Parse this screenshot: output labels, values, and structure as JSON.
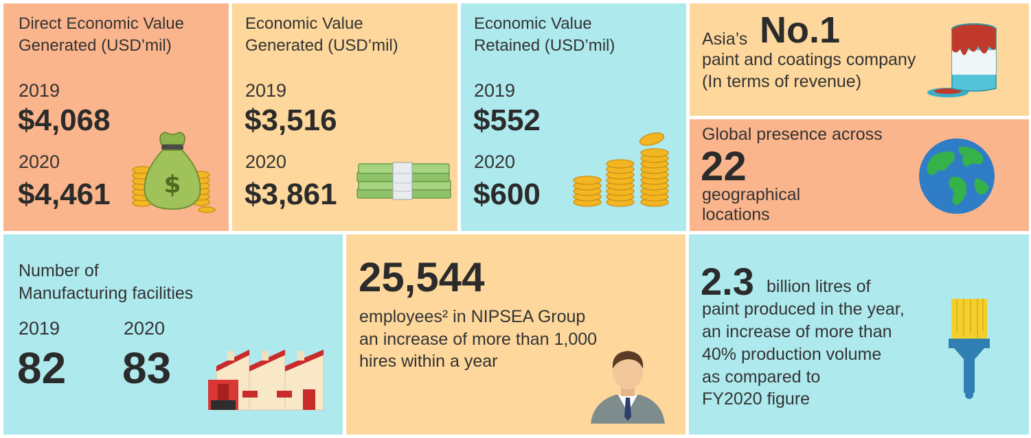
{
  "direct": {
    "title_line1": "Direct Economic Value",
    "title_line2": "Generated (USD’mil)",
    "year1": "2019",
    "value1": "$4,068",
    "year2": "2020",
    "value2": "$4,461"
  },
  "generated": {
    "title_line1": "Economic Value",
    "title_line2": "Generated (USD’mil)",
    "year1": "2019",
    "value1": "$3,516",
    "year2": "2020",
    "value2": "$3,861"
  },
  "retained": {
    "title_line1": "Economic Value",
    "title_line2": "Retained (USD’mil)",
    "year1": "2019",
    "value1": "$552",
    "year2": "2020",
    "value2": "$600"
  },
  "asia": {
    "prefix": "Asia’s",
    "rank": "No.1",
    "line1": "paint and coatings company",
    "line2": "(In terms of revenue)"
  },
  "global": {
    "heading": "Global presence across",
    "count": "22",
    "line1": "geographical",
    "line2": "locations"
  },
  "facilities": {
    "title_line1": "Number of",
    "title_line2": "Manufacturing facilities",
    "year1": "2019",
    "value1": "82",
    "year2": "2020",
    "value2": "83"
  },
  "employees": {
    "count": "25,544",
    "line1": "employees² in NIPSEA Group",
    "line2": "an increase of more than 1,000",
    "line3": "hires within a year"
  },
  "paint": {
    "amount": "2.3",
    "unit": "billion litres of",
    "line1": "paint produced in the year,",
    "line2": "an increase of more than",
    "line3": "40% production volume",
    "line4": "as compared to",
    "line5": "FY2020 figure"
  },
  "colors": {
    "orange": "#fbb58c",
    "peach": "#fdd79b",
    "cyan": "#aee9ee",
    "text": "#2f2f2f"
  },
  "icons": [
    "money-bag-icon",
    "cash-stack-icon",
    "coin-stacks-icon",
    "paint-can-icon",
    "globe-icon",
    "factory-icon",
    "businessman-icon",
    "paintbrush-icon"
  ]
}
